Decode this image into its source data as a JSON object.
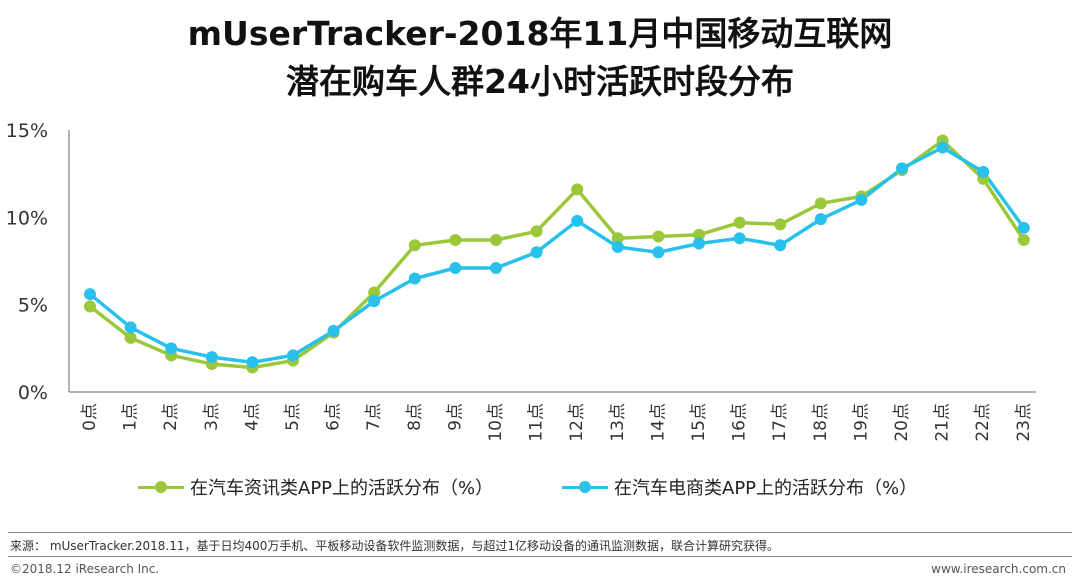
{
  "header": {
    "title_line1": "mUserTracker-2018年11月中国移动互联网",
    "title_line2": "潜在购车人群24小时活跃时段分布"
  },
  "chart_data": {
    "type": "line",
    "categories": [
      "0点",
      "1点",
      "2点",
      "3点",
      "4点",
      "5点",
      "6点",
      "7点",
      "8点",
      "9点",
      "10点",
      "11点",
      "12点",
      "13点",
      "14点",
      "15点",
      "16点",
      "17点",
      "18点",
      "19点",
      "20点",
      "21点",
      "22点",
      "23点"
    ],
    "ylim": [
      0,
      15
    ],
    "yticks": [
      "0%",
      "5%",
      "10%",
      "15%"
    ],
    "ytick_values": [
      0,
      5,
      10,
      15
    ],
    "grid": false,
    "legend_position": "bottom",
    "series": [
      {
        "name": "在汽车资讯类APP上的活跃分布（%）",
        "color": "#9BC83A",
        "values": [
          4.9,
          3.1,
          2.1,
          1.6,
          1.4,
          1.8,
          3.4,
          5.7,
          8.4,
          8.7,
          8.7,
          9.2,
          11.6,
          8.8,
          8.9,
          9.0,
          9.7,
          9.6,
          10.8,
          11.2,
          12.7,
          14.4,
          12.2,
          8.7
        ]
      },
      {
        "name": "在汽车电商类APP上的活跃分布（%）",
        "color": "#27C1EC",
        "values": [
          5.6,
          3.7,
          2.5,
          2.0,
          1.7,
          2.1,
          3.5,
          5.2,
          6.5,
          7.1,
          7.1,
          8.0,
          9.8,
          8.3,
          8.0,
          8.5,
          8.8,
          8.4,
          9.9,
          11.0,
          12.8,
          14.0,
          12.6,
          9.4
        ]
      }
    ]
  },
  "footer": {
    "source": "来源： mUserTracker.2018.11，基于日均400万手机、平板移动设备软件监测数据，与超过1亿移动设备的通讯监测数据，联合计算研究获得。",
    "copyright": "©2018.12 iResearch Inc.",
    "website": "www.iresearch.com.cn"
  }
}
